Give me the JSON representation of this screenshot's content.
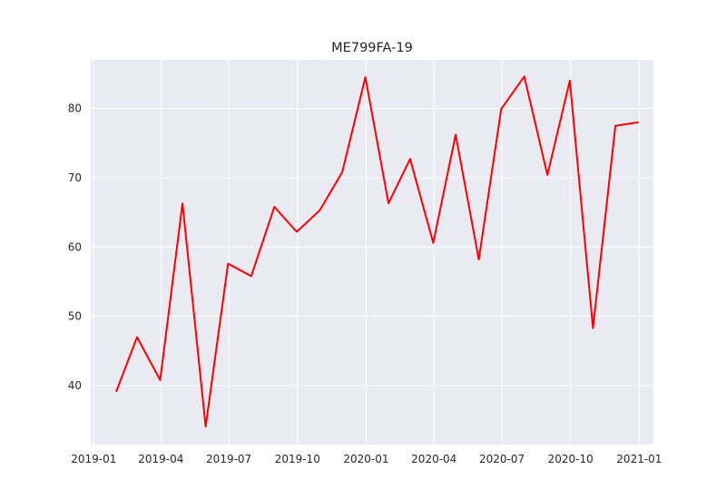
{
  "chart_data": {
    "type": "line",
    "title": "ME799FA-19",
    "xlabel": "",
    "ylabel": "",
    "grid": true,
    "colors": {
      "line": "#ff0000",
      "background": "#eaeaf2",
      "grid": "#ffffff"
    },
    "x_ticks": [
      "2019-01",
      "2019-04",
      "2019-07",
      "2019-10",
      "2020-01",
      "2020-04",
      "2020-07",
      "2020-10",
      "2021-01"
    ],
    "y_ticks": [
      40,
      50,
      60,
      70,
      80
    ],
    "xlim": [
      "2018-12-28",
      "2021-01-20"
    ],
    "ylim": [
      31.5,
      87
    ],
    "series": [
      {
        "x": [
          "2019-01-31",
          "2019-02-28",
          "2019-03-31",
          "2019-04-30",
          "2019-05-31",
          "2019-06-30",
          "2019-07-31",
          "2019-08-31",
          "2019-09-30",
          "2019-10-31",
          "2019-11-30",
          "2019-12-31",
          "2020-01-31",
          "2020-02-29",
          "2020-03-31",
          "2020-04-30",
          "2020-05-31",
          "2020-06-30",
          "2020-07-31",
          "2020-08-31",
          "2020-09-30",
          "2020-10-31",
          "2020-11-30",
          "2020-12-31"
        ],
        "y": [
          39.1,
          47.0,
          40.8,
          66.3,
          34.1,
          57.6,
          55.8,
          65.8,
          62.2,
          65.3,
          70.8,
          84.5,
          66.3,
          72.7,
          60.6,
          76.2,
          58.2,
          79.9,
          84.6,
          70.4,
          84.0,
          48.3,
          77.5,
          78.0
        ]
      }
    ]
  }
}
